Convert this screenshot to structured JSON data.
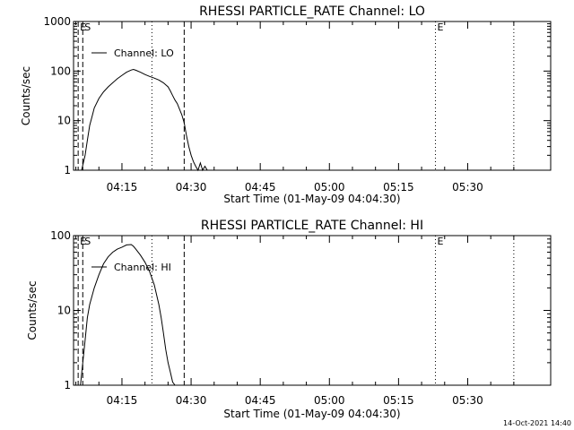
{
  "footer": {
    "timestamp": "14-Oct-2021 14:40"
  },
  "chart_data": [
    {
      "type": "line",
      "title": "RHESSI PARTICLE_RATE Channel: LO",
      "xlabel": "Start Time (01-May-09 04:04:30)",
      "ylabel": "Counts/sec",
      "y_scale": "log",
      "ylim": [
        1,
        1000
      ],
      "y_ticks": [
        1,
        10,
        100,
        1000
      ],
      "y_tick_labels": [
        "1",
        "10",
        "100",
        "1000"
      ],
      "xlim": [
        "04:04:30",
        "05:48:00"
      ],
      "x_ticks": [
        "04:15",
        "04:30",
        "04:45",
        "05:00",
        "05:15",
        "05:30"
      ],
      "legend": "top-left",
      "series": [
        {
          "name": "Channel: LO",
          "x": [
            "04:06:15",
            "04:07:00",
            "04:07:30",
            "04:08:00",
            "04:08:30",
            "04:09:00",
            "04:10:00",
            "04:11:00",
            "04:12:00",
            "04:13:00",
            "04:14:00",
            "04:15:00",
            "04:16:00",
            "04:17:00",
            "04:17:30",
            "04:18:00",
            "04:19:00",
            "04:20:00",
            "04:21:00",
            "04:22:00",
            "04:23:00",
            "04:24:00",
            "04:25:00",
            "04:25:30",
            "04:26:00",
            "04:26:30",
            "04:27:00",
            "04:27:30",
            "04:28:00",
            "04:28:30",
            "04:29:00",
            "04:29:30",
            "04:30:00",
            "04:30:30",
            "04:31:00",
            "04:31:30",
            "04:32:00",
            "04:32:30",
            "04:33:00",
            "04:33:30"
          ],
          "values": [
            1,
            2,
            4,
            8,
            12,
            18,
            28,
            38,
            48,
            58,
            70,
            82,
            95,
            105,
            108,
            104,
            95,
            85,
            78,
            72,
            66,
            58,
            48,
            40,
            32,
            26,
            22,
            17,
            13,
            9,
            5,
            3,
            2,
            1.5,
            1.2,
            1,
            1.4,
            1,
            1.2,
            1
          ]
        }
      ],
      "markers": [
        {
          "label": "S",
          "x": "04:06:30",
          "style": "dashed"
        },
        {
          "label": "E",
          "x": "04:05:30",
          "style": "dashed"
        },
        {
          "label": "",
          "x": "04:21:30",
          "style": "dotted"
        },
        {
          "label": "",
          "x": "04:28:30",
          "style": "dashed"
        },
        {
          "label": "E",
          "x": "05:23:00",
          "style": "dotted"
        },
        {
          "label": "",
          "x": "05:40:00",
          "style": "dotted"
        }
      ]
    },
    {
      "type": "line",
      "title": "RHESSI PARTICLE_RATE Channel: HI",
      "xlabel": "Start Time (01-May-09 04:04:30)",
      "ylabel": "Counts/sec",
      "y_scale": "log",
      "ylim": [
        1,
        100
      ],
      "y_ticks": [
        1,
        10,
        100
      ],
      "y_tick_labels": [
        "1",
        "10",
        "100"
      ],
      "xlim": [
        "04:04:30",
        "05:48:00"
      ],
      "x_ticks": [
        "04:15",
        "04:30",
        "04:45",
        "05:00",
        "05:15",
        "05:30"
      ],
      "legend": "top-left",
      "series": [
        {
          "name": "Channel: HI",
          "x": [
            "04:06:00",
            "04:06:30",
            "04:07:00",
            "04:07:30",
            "04:08:00",
            "04:09:00",
            "04:10:00",
            "04:11:00",
            "04:12:00",
            "04:13:00",
            "04:14:00",
            "04:15:00",
            "04:16:00",
            "04:17:00",
            "04:17:30",
            "04:18:00",
            "04:19:00",
            "04:20:00",
            "04:21:00",
            "04:22:00",
            "04:23:00",
            "04:23:30",
            "04:24:00",
            "04:24:30",
            "04:25:00",
            "04:25:30",
            "04:26:00",
            "04:26:30"
          ],
          "values": [
            1,
            2,
            4,
            8,
            12,
            20,
            30,
            42,
            52,
            60,
            66,
            70,
            75,
            76,
            72,
            66,
            55,
            44,
            33,
            22,
            12,
            8,
            5,
            3,
            2,
            1.5,
            1.1,
            1
          ]
        }
      ],
      "markers": [
        {
          "label": "S",
          "x": "04:06:30",
          "style": "dashed"
        },
        {
          "label": "E",
          "x": "04:05:30",
          "style": "dashed"
        },
        {
          "label": "",
          "x": "04:21:30",
          "style": "dotted"
        },
        {
          "label": "",
          "x": "04:28:30",
          "style": "dashed"
        },
        {
          "label": "E",
          "x": "05:23:00",
          "style": "dotted"
        },
        {
          "label": "",
          "x": "05:40:00",
          "style": "dotted"
        }
      ]
    }
  ]
}
